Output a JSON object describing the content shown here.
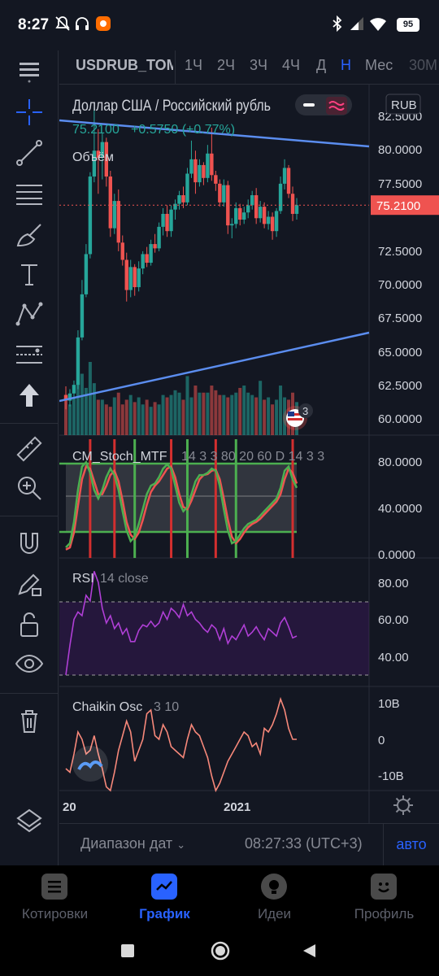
{
  "status_bar": {
    "time": "8:27",
    "battery": "95"
  },
  "toolbar": {
    "symbol": "USDRUB_TOM",
    "timeframes": [
      "1Ч",
      "2Ч",
      "3Ч",
      "4Ч",
      "Д",
      "Н",
      "Мес",
      "30М"
    ],
    "active_timeframe": "Н"
  },
  "legend": {
    "title": "Доллар США / Российский рубль",
    "price": "75.2100",
    "change": "+0.5750 (+0.77%)",
    "volume_label": "Объём",
    "currency": "RUB"
  },
  "price_axis": {
    "ticks": [
      "82.5000",
      "80.0000",
      "77.5000",
      "75.0000",
      "72.5000",
      "70.0000",
      "67.5000",
      "65.0000",
      "62.5000",
      "60.0000"
    ],
    "current_label": "75.2100"
  },
  "events_badge": "3",
  "stoch": {
    "label": "CM_Stoch_MTF",
    "params": "14 3 3 80 20 60 D 14 3 3",
    "ticks": [
      "80.0000",
      "40.0000",
      "0.0000"
    ]
  },
  "rsi": {
    "label": "RSI",
    "params": "14 close",
    "ticks": [
      "80.00",
      "60.00",
      "40.00"
    ]
  },
  "chaikin": {
    "label": "Chaikin Osc",
    "params": "3 10",
    "ticks": [
      "10B",
      "0",
      "-10B"
    ]
  },
  "time_axis": {
    "ticks": [
      "20",
      "2021"
    ]
  },
  "range": {
    "label": "Диапазон дат",
    "clock": "08:27:33 (UTC+3)",
    "auto": "авто"
  },
  "nav": [
    {
      "label": "Котировки",
      "active": false
    },
    {
      "label": "График",
      "active": true
    },
    {
      "label": "Идеи",
      "active": false
    },
    {
      "label": "Профиль",
      "active": false
    }
  ],
  "colors": {
    "up": "#26a69a",
    "down": "#ef5350",
    "accent": "#2962ff",
    "trend": "#5b8def",
    "rsi": "#b03fd6",
    "chaikin": "#f7887a"
  },
  "chart_data": {
    "type": "candlestick",
    "ylim": [
      59.2,
      83.6
    ],
    "current_price": 75.21,
    "ohlc": [
      [
        62.0,
        62.6,
        61.0,
        61.6
      ],
      [
        61.6,
        62.4,
        61.2,
        62.1
      ],
      [
        62.1,
        63.0,
        61.7,
        62.7
      ],
      [
        62.7,
        66.5,
        62.4,
        66.0
      ],
      [
        66.0,
        70.0,
        65.8,
        69.0
      ],
      [
        69.0,
        72.5,
        68.8,
        71.8
      ],
      [
        71.8,
        77.5,
        71.5,
        77.2
      ],
      [
        77.2,
        82.0,
        76.8,
        79.0
      ],
      [
        79.0,
        80.5,
        76.0,
        78.5
      ],
      [
        78.5,
        80.2,
        77.0,
        79.6
      ],
      [
        79.6,
        79.9,
        76.5,
        77.2
      ],
      [
        77.2,
        77.6,
        73.0,
        73.6
      ],
      [
        73.6,
        76.0,
        73.2,
        75.5
      ],
      [
        75.5,
        76.3,
        72.0,
        72.6
      ],
      [
        72.6,
        73.1,
        71.0,
        71.4
      ],
      [
        71.4,
        71.9,
        68.5,
        69.3
      ],
      [
        69.3,
        71.4,
        68.8,
        70.9
      ],
      [
        70.9,
        71.1,
        68.9,
        69.5
      ],
      [
        69.5,
        71.3,
        69.2,
        70.8
      ],
      [
        70.8,
        72.0,
        70.4,
        71.8
      ],
      [
        71.8,
        72.3,
        70.9,
        71.2
      ],
      [
        71.2,
        72.8,
        71.0,
        72.5
      ],
      [
        72.5,
        73.2,
        71.9,
        72.2
      ],
      [
        72.2,
        74.0,
        72.0,
        73.7
      ],
      [
        73.7,
        75.0,
        73.1,
        74.6
      ],
      [
        74.6,
        75.2,
        73.0,
        73.4
      ],
      [
        73.4,
        75.2,
        73.0,
        74.9
      ],
      [
        74.9,
        75.6,
        74.2,
        75.3
      ],
      [
        75.3,
        76.2,
        74.9,
        75.9
      ],
      [
        75.9,
        76.5,
        75.0,
        75.4
      ],
      [
        75.4,
        77.8,
        75.2,
        77.4
      ],
      [
        77.4,
        79.7,
        77.1,
        78.4
      ],
      [
        78.4,
        79.0,
        76.0,
        76.8
      ],
      [
        76.8,
        78.4,
        76.5,
        78.0
      ],
      [
        78.0,
        78.2,
        76.6,
        77.1
      ],
      [
        77.1,
        79.4,
        76.8,
        78.8
      ],
      [
        78.8,
        80.6,
        76.9,
        77.3
      ],
      [
        77.3,
        77.6,
        76.2,
        76.7
      ],
      [
        76.7,
        77.0,
        75.1,
        75.4
      ],
      [
        75.4,
        77.0,
        75.1,
        76.6
      ],
      [
        76.6,
        76.9,
        73.2,
        73.8
      ],
      [
        73.8,
        74.3,
        72.9,
        73.9
      ],
      [
        73.9,
        75.4,
        73.6,
        75.0
      ],
      [
        75.0,
        75.3,
        73.8,
        74.2
      ],
      [
        74.2,
        75.1,
        73.9,
        74.7
      ],
      [
        74.7,
        75.6,
        74.3,
        75.2
      ],
      [
        75.2,
        76.2,
        74.9,
        75.9
      ],
      [
        75.9,
        76.4,
        73.9,
        74.3
      ],
      [
        74.3,
        75.5,
        74.0,
        75.1
      ],
      [
        75.1,
        75.4,
        73.6,
        73.9
      ],
      [
        73.9,
        74.8,
        73.5,
        74.4
      ],
      [
        74.4,
        74.7,
        72.8,
        73.4
      ],
      [
        73.4,
        75.0,
        73.0,
        74.8
      ],
      [
        74.8,
        77.2,
        74.6,
        76.7
      ],
      [
        76.7,
        78.4,
        76.3,
        77.8
      ],
      [
        77.8,
        78.0,
        75.7,
        76.0
      ],
      [
        76.0,
        76.5,
        74.1,
        74.6
      ],
      [
        74.6,
        75.7,
        74.2,
        75.21
      ]
    ],
    "volume": [
      1.5,
      1.3,
      1.6,
      2.3,
      2.6,
      2.0,
      3.1,
      2.2,
      1.5,
      1.5,
      1.3,
      1.2,
      1.6,
      1.8,
      1.3,
      1.5,
      1.7,
      1.4,
      1.6,
      1.3,
      1.5,
      1.2,
      1.4,
      1.3,
      1.7,
      1.6,
      1.7,
      1.9,
      1.8,
      1.5,
      2.5,
      1.6,
      2.1,
      1.8,
      1.8,
      1.8,
      2.1,
      1.9,
      1.7,
      1.7,
      1.6,
      1.7,
      1.8,
      2.0,
      2.1,
      1.8,
      1.7,
      1.6,
      2.3,
      1.5,
      1.6,
      1.3,
      1.5,
      2.1,
      1.6,
      1.5,
      1.8,
      1.4
    ],
    "stoch_k": [
      6,
      10,
      30,
      60,
      82,
      86,
      76,
      60,
      52,
      60,
      72,
      80,
      74,
      60,
      40,
      22,
      12,
      16,
      28,
      42,
      56,
      64,
      66,
      72,
      80,
      84,
      80,
      64,
      48,
      40,
      44,
      56,
      68,
      74,
      74,
      76,
      80,
      78,
      64,
      42,
      22,
      10,
      12,
      18,
      24,
      28,
      30,
      32,
      36,
      40,
      44,
      48,
      52,
      62,
      78,
      82,
      70,
      62
    ],
    "stoch_d": [
      4,
      6,
      20,
      45,
      70,
      82,
      80,
      68,
      56,
      56,
      64,
      74,
      78,
      68,
      50,
      30,
      18,
      14,
      20,
      32,
      46,
      58,
      64,
      68,
      74,
      80,
      82,
      72,
      56,
      44,
      42,
      50,
      60,
      70,
      74,
      75,
      78,
      79,
      70,
      52,
      32,
      16,
      10,
      14,
      20,
      25,
      28,
      30,
      33,
      37,
      41,
      45,
      49,
      56,
      70,
      80,
      76,
      66
    ],
    "rsi": [
      30,
      46,
      60,
      64,
      62,
      73,
      70,
      86,
      80,
      66,
      58,
      62,
      55,
      58,
      52,
      55,
      48,
      48,
      54,
      57,
      56,
      59,
      56,
      58,
      64,
      60,
      66,
      64,
      61,
      68,
      62,
      64,
      60,
      58,
      55,
      53,
      57,
      55,
      49,
      55,
      47,
      51,
      49,
      53,
      57,
      51,
      53,
      56,
      52,
      49,
      55,
      53,
      51,
      58,
      61,
      56,
      50,
      51
    ],
    "chaikin": [
      -8,
      -9,
      -4,
      2,
      0,
      -4,
      -3,
      1,
      -4,
      -8,
      -13,
      -14,
      -9,
      -3,
      1,
      5,
      2,
      -6,
      -3,
      0,
      7,
      8,
      1,
      0,
      4,
      2,
      -2,
      -3,
      -4,
      -5,
      0,
      4,
      2,
      1,
      -2,
      -5,
      -10,
      -14,
      -12,
      -9,
      -6,
      -4,
      -2,
      0,
      2,
      1,
      -2,
      -1,
      -4,
      3,
      2,
      4,
      7,
      11,
      8,
      3,
      0,
      0
    ]
  }
}
